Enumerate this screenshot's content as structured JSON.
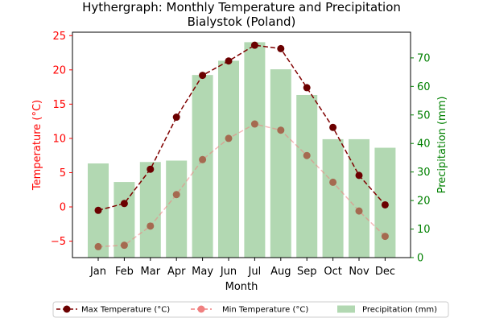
{
  "chart_data": {
    "type": "line",
    "title_line1": "Hythergraph: Monthly Temperature and Precipitation",
    "title_line2": "Bialystok (Poland)",
    "xlabel": "Month",
    "ylabel_left": "Temperature (°C)",
    "ylabel_right": "Precipitation (mm)",
    "categories": [
      "Jan",
      "Feb",
      "Mar",
      "Apr",
      "May",
      "Jun",
      "Jul",
      "Aug",
      "Sep",
      "Oct",
      "Nov",
      "Dec"
    ],
    "ylim_left": [
      -7.4,
      25.5
    ],
    "ylim_right": [
      0,
      79
    ],
    "yticks_left": [
      -5,
      0,
      5,
      10,
      15,
      20,
      25
    ],
    "yticks_right": [
      0,
      10,
      20,
      30,
      40,
      50,
      60,
      70
    ],
    "series": [
      {
        "name": "Max Temperature (°C)",
        "axis": "left",
        "kind": "line",
        "color": "#800000",
        "values": [
          -0.5,
          0.5,
          5.5,
          13.1,
          19.2,
          21.3,
          23.6,
          23.1,
          17.4,
          11.6,
          4.6,
          0.3
        ]
      },
      {
        "name": "Min Temperature (°C)",
        "axis": "left",
        "kind": "line",
        "color": "#f08080",
        "line_alpha": 0.55,
        "values": [
          -5.8,
          -5.6,
          -2.8,
          1.8,
          6.9,
          10.0,
          12.1,
          11.2,
          7.5,
          3.6,
          -0.6,
          -4.3
        ]
      },
      {
        "name": "Precipitation (mm)",
        "axis": "right",
        "kind": "bar",
        "color": "#b2d8b2",
        "values": [
          33,
          26.5,
          33.5,
          34,
          64,
          69,
          75.5,
          66,
          57,
          41.5,
          41.5,
          38.5
        ]
      }
    ],
    "colors": {
      "left_axis": "#ff0000",
      "right_axis": "#008000",
      "max_marker": "#6b0000",
      "min_marker": "#a56a50"
    },
    "legend_placement": "bottom-center",
    "grid": false
  }
}
